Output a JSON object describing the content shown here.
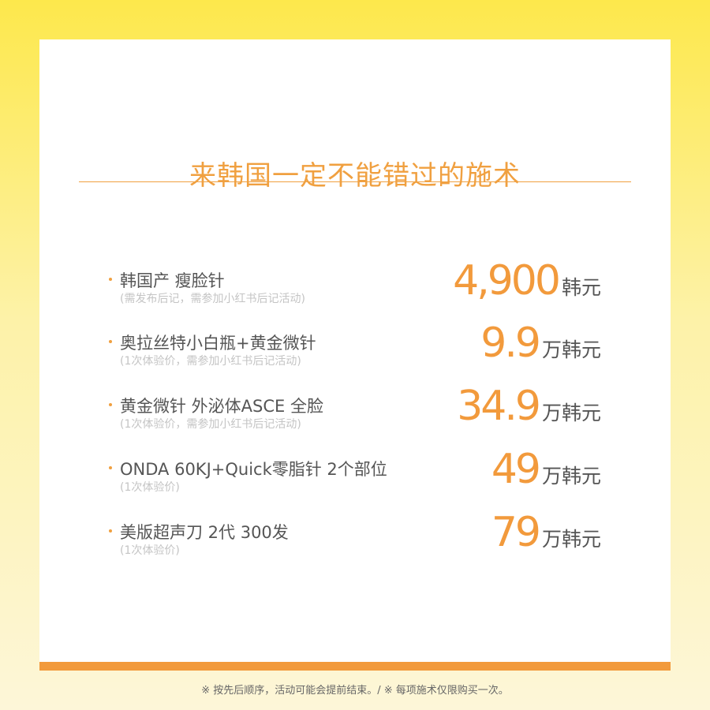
{
  "title": "来韩国一定不能错过的施术",
  "items": [
    {
      "name": "韩国产 瘦脸针",
      "note": "(需发布后记，需参加小红书后记活动)",
      "price": "4,900",
      "unit": "韩元"
    },
    {
      "name": "奥拉丝特小白瓶+黄金微针",
      "note": "(1次体验价，需参加小红书后记活动)",
      "price": "9.9",
      "unit": "万韩元"
    },
    {
      "name": "黄金微针 外泌体ASCE 全脸",
      "note": "(1次体验价，需参加小红书后记活动)",
      "price": "34.9",
      "unit": "万韩元"
    },
    {
      "name": "ONDA 60KJ+Quick零脂针 2个部位",
      "note": "(1次体验价)",
      "price": "49",
      "unit": "万韩元"
    },
    {
      "name": "美版超声刀 2代 300发",
      "note": "(1次体验价)",
      "price": "79",
      "unit": "万韩元"
    }
  ],
  "footer": "※ 按先后顺序，活动可能会提前结束。/ ※ 每项施术仅限购买一次。",
  "colors": {
    "accent": "#f29a3c",
    "background_top": "#fde84c",
    "background_bottom": "#fdf6d8"
  }
}
